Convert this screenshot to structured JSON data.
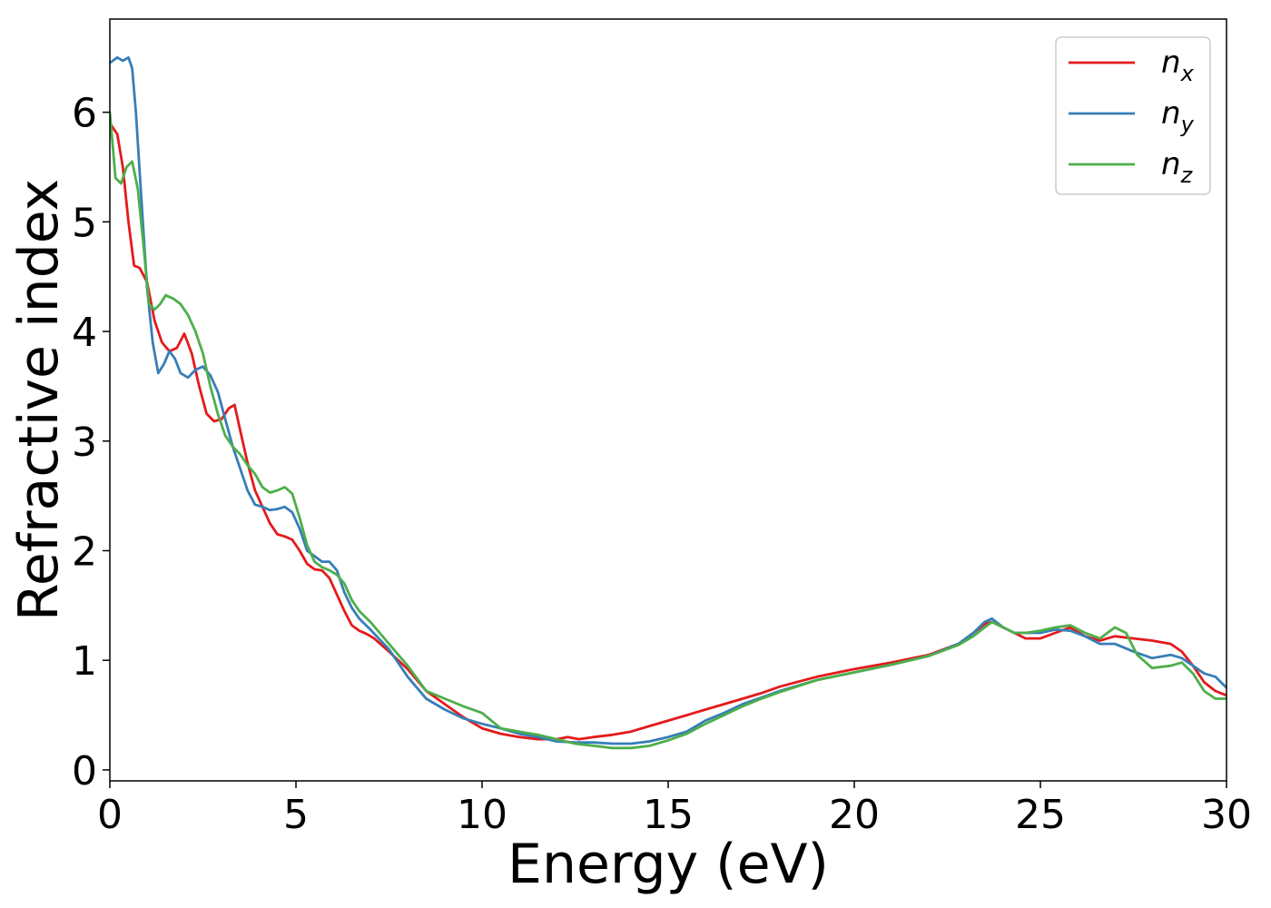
{
  "chart_data": {
    "type": "line",
    "title": "",
    "xlabel": "Energy (eV)",
    "ylabel": "Refractive index",
    "xlim": [
      0,
      30
    ],
    "ylim": [
      -0.1,
      6.85
    ],
    "xticks": [
      0,
      5,
      10,
      15,
      20,
      25,
      30
    ],
    "yticks": [
      0,
      1,
      2,
      3,
      4,
      5,
      6
    ],
    "grid": false,
    "legend_position": "top-right",
    "series": [
      {
        "name": "n",
        "subscript": "x",
        "color": "#e41a1c",
        "x": [
          0,
          0.2,
          0.35,
          0.5,
          0.65,
          0.8,
          1.0,
          1.2,
          1.4,
          1.6,
          1.8,
          2.0,
          2.2,
          2.4,
          2.6,
          2.8,
          3.0,
          3.2,
          3.35,
          3.5,
          3.7,
          3.9,
          4.1,
          4.3,
          4.5,
          4.7,
          4.9,
          5.1,
          5.3,
          5.5,
          5.7,
          5.9,
          6.1,
          6.3,
          6.5,
          6.7,
          6.9,
          7.1,
          7.5,
          8.0,
          8.5,
          9.0,
          9.5,
          10.0,
          10.5,
          11.0,
          11.5,
          12.0,
          12.3,
          12.6,
          13.0,
          13.5,
          14.0,
          14.5,
          15.0,
          15.5,
          16.0,
          16.5,
          17.0,
          17.5,
          18.0,
          19.0,
          20.0,
          21.0,
          22.0,
          22.8,
          23.2,
          23.5,
          23.7,
          24.0,
          24.3,
          24.6,
          25.0,
          25.4,
          25.8,
          26.2,
          26.6,
          27.0,
          27.5,
          28.0,
          28.5,
          28.8,
          29.1,
          29.4,
          29.7,
          30.0
        ],
        "y": [
          5.9,
          5.8,
          5.5,
          5.0,
          4.6,
          4.58,
          4.45,
          4.1,
          3.9,
          3.82,
          3.85,
          3.98,
          3.8,
          3.5,
          3.25,
          3.18,
          3.2,
          3.3,
          3.33,
          3.1,
          2.8,
          2.55,
          2.4,
          2.25,
          2.15,
          2.13,
          2.1,
          2.0,
          1.88,
          1.83,
          1.82,
          1.75,
          1.6,
          1.45,
          1.32,
          1.27,
          1.24,
          1.2,
          1.08,
          0.92,
          0.72,
          0.6,
          0.48,
          0.38,
          0.33,
          0.3,
          0.28,
          0.28,
          0.3,
          0.28,
          0.3,
          0.32,
          0.35,
          0.4,
          0.45,
          0.5,
          0.55,
          0.6,
          0.65,
          0.7,
          0.76,
          0.85,
          0.92,
          0.98,
          1.05,
          1.15,
          1.25,
          1.33,
          1.35,
          1.3,
          1.25,
          1.2,
          1.2,
          1.25,
          1.3,
          1.22,
          1.18,
          1.22,
          1.2,
          1.18,
          1.15,
          1.08,
          0.95,
          0.8,
          0.72,
          0.68
        ]
      },
      {
        "name": "n",
        "subscript": "y",
        "color": "#377eb8",
        "x": [
          0,
          0.2,
          0.35,
          0.5,
          0.6,
          0.7,
          0.85,
          1.0,
          1.15,
          1.3,
          1.45,
          1.6,
          1.75,
          1.9,
          2.1,
          2.3,
          2.5,
          2.7,
          2.9,
          3.1,
          3.3,
          3.5,
          3.7,
          3.9,
          4.1,
          4.3,
          4.5,
          4.7,
          4.9,
          5.1,
          5.3,
          5.5,
          5.7,
          5.9,
          6.1,
          6.3,
          6.5,
          6.7,
          7.0,
          7.5,
          8.0,
          8.5,
          9.0,
          9.5,
          10.0,
          10.5,
          11.0,
          11.5,
          12.0,
          12.5,
          13.0,
          13.5,
          14.0,
          14.5,
          15.0,
          15.5,
          16.0,
          16.5,
          17.0,
          17.5,
          18.0,
          19.0,
          20.0,
          21.0,
          22.0,
          22.8,
          23.2,
          23.5,
          23.7,
          24.0,
          24.3,
          24.6,
          25.0,
          25.4,
          25.8,
          26.2,
          26.6,
          27.0,
          27.5,
          28.0,
          28.5,
          28.8,
          29.1,
          29.4,
          29.7,
          30.0
        ],
        "y": [
          6.45,
          6.5,
          6.47,
          6.5,
          6.4,
          6.0,
          5.2,
          4.4,
          3.9,
          3.62,
          3.7,
          3.82,
          3.75,
          3.62,
          3.58,
          3.65,
          3.68,
          3.6,
          3.45,
          3.2,
          2.95,
          2.75,
          2.55,
          2.42,
          2.4,
          2.37,
          2.38,
          2.4,
          2.35,
          2.2,
          2.0,
          1.95,
          1.9,
          1.9,
          1.82,
          1.62,
          1.48,
          1.38,
          1.28,
          1.1,
          0.85,
          0.65,
          0.55,
          0.47,
          0.42,
          0.38,
          0.33,
          0.3,
          0.26,
          0.25,
          0.25,
          0.24,
          0.24,
          0.26,
          0.3,
          0.35,
          0.45,
          0.52,
          0.6,
          0.66,
          0.72,
          0.82,
          0.89,
          0.96,
          1.04,
          1.15,
          1.25,
          1.35,
          1.38,
          1.3,
          1.25,
          1.25,
          1.25,
          1.28,
          1.27,
          1.22,
          1.15,
          1.15,
          1.08,
          1.02,
          1.05,
          1.02,
          0.95,
          0.88,
          0.85,
          0.75
        ]
      },
      {
        "name": "n",
        "subscript": "z",
        "color": "#4daf4a",
        "x": [
          0,
          0.15,
          0.3,
          0.45,
          0.6,
          0.75,
          0.9,
          1.05,
          1.2,
          1.35,
          1.5,
          1.7,
          1.9,
          2.1,
          2.3,
          2.5,
          2.7,
          2.9,
          3.1,
          3.3,
          3.5,
          3.7,
          3.9,
          4.1,
          4.3,
          4.5,
          4.7,
          4.9,
          5.1,
          5.3,
          5.5,
          5.7,
          5.9,
          6.1,
          6.3,
          6.5,
          6.7,
          7.0,
          7.5,
          8.0,
          8.5,
          9.0,
          9.5,
          10.0,
          10.5,
          11.0,
          11.5,
          12.0,
          12.5,
          13.0,
          13.5,
          14.0,
          14.5,
          15.0,
          15.5,
          16.0,
          16.5,
          17.0,
          17.5,
          18.0,
          19.0,
          20.0,
          21.0,
          22.0,
          22.8,
          23.2,
          23.5,
          23.7,
          24.0,
          24.3,
          24.6,
          25.0,
          25.4,
          25.8,
          26.2,
          26.6,
          27.0,
          27.3,
          27.6,
          28.0,
          28.5,
          28.8,
          29.1,
          29.4,
          29.7,
          30.0
        ],
        "y": [
          6.0,
          5.4,
          5.35,
          5.5,
          5.55,
          5.3,
          4.8,
          4.25,
          4.2,
          4.25,
          4.33,
          4.3,
          4.25,
          4.15,
          4.0,
          3.8,
          3.5,
          3.25,
          3.05,
          2.95,
          2.88,
          2.78,
          2.7,
          2.58,
          2.53,
          2.55,
          2.58,
          2.52,
          2.3,
          2.05,
          1.9,
          1.85,
          1.82,
          1.78,
          1.7,
          1.55,
          1.45,
          1.35,
          1.15,
          0.95,
          0.72,
          0.65,
          0.58,
          0.52,
          0.38,
          0.35,
          0.32,
          0.28,
          0.24,
          0.22,
          0.2,
          0.2,
          0.22,
          0.27,
          0.33,
          0.42,
          0.5,
          0.58,
          0.65,
          0.71,
          0.82,
          0.89,
          0.96,
          1.04,
          1.14,
          1.22,
          1.3,
          1.35,
          1.3,
          1.25,
          1.25,
          1.27,
          1.3,
          1.32,
          1.25,
          1.2,
          1.3,
          1.25,
          1.05,
          0.93,
          0.95,
          0.98,
          0.88,
          0.72,
          0.65,
          0.65
        ]
      }
    ]
  }
}
